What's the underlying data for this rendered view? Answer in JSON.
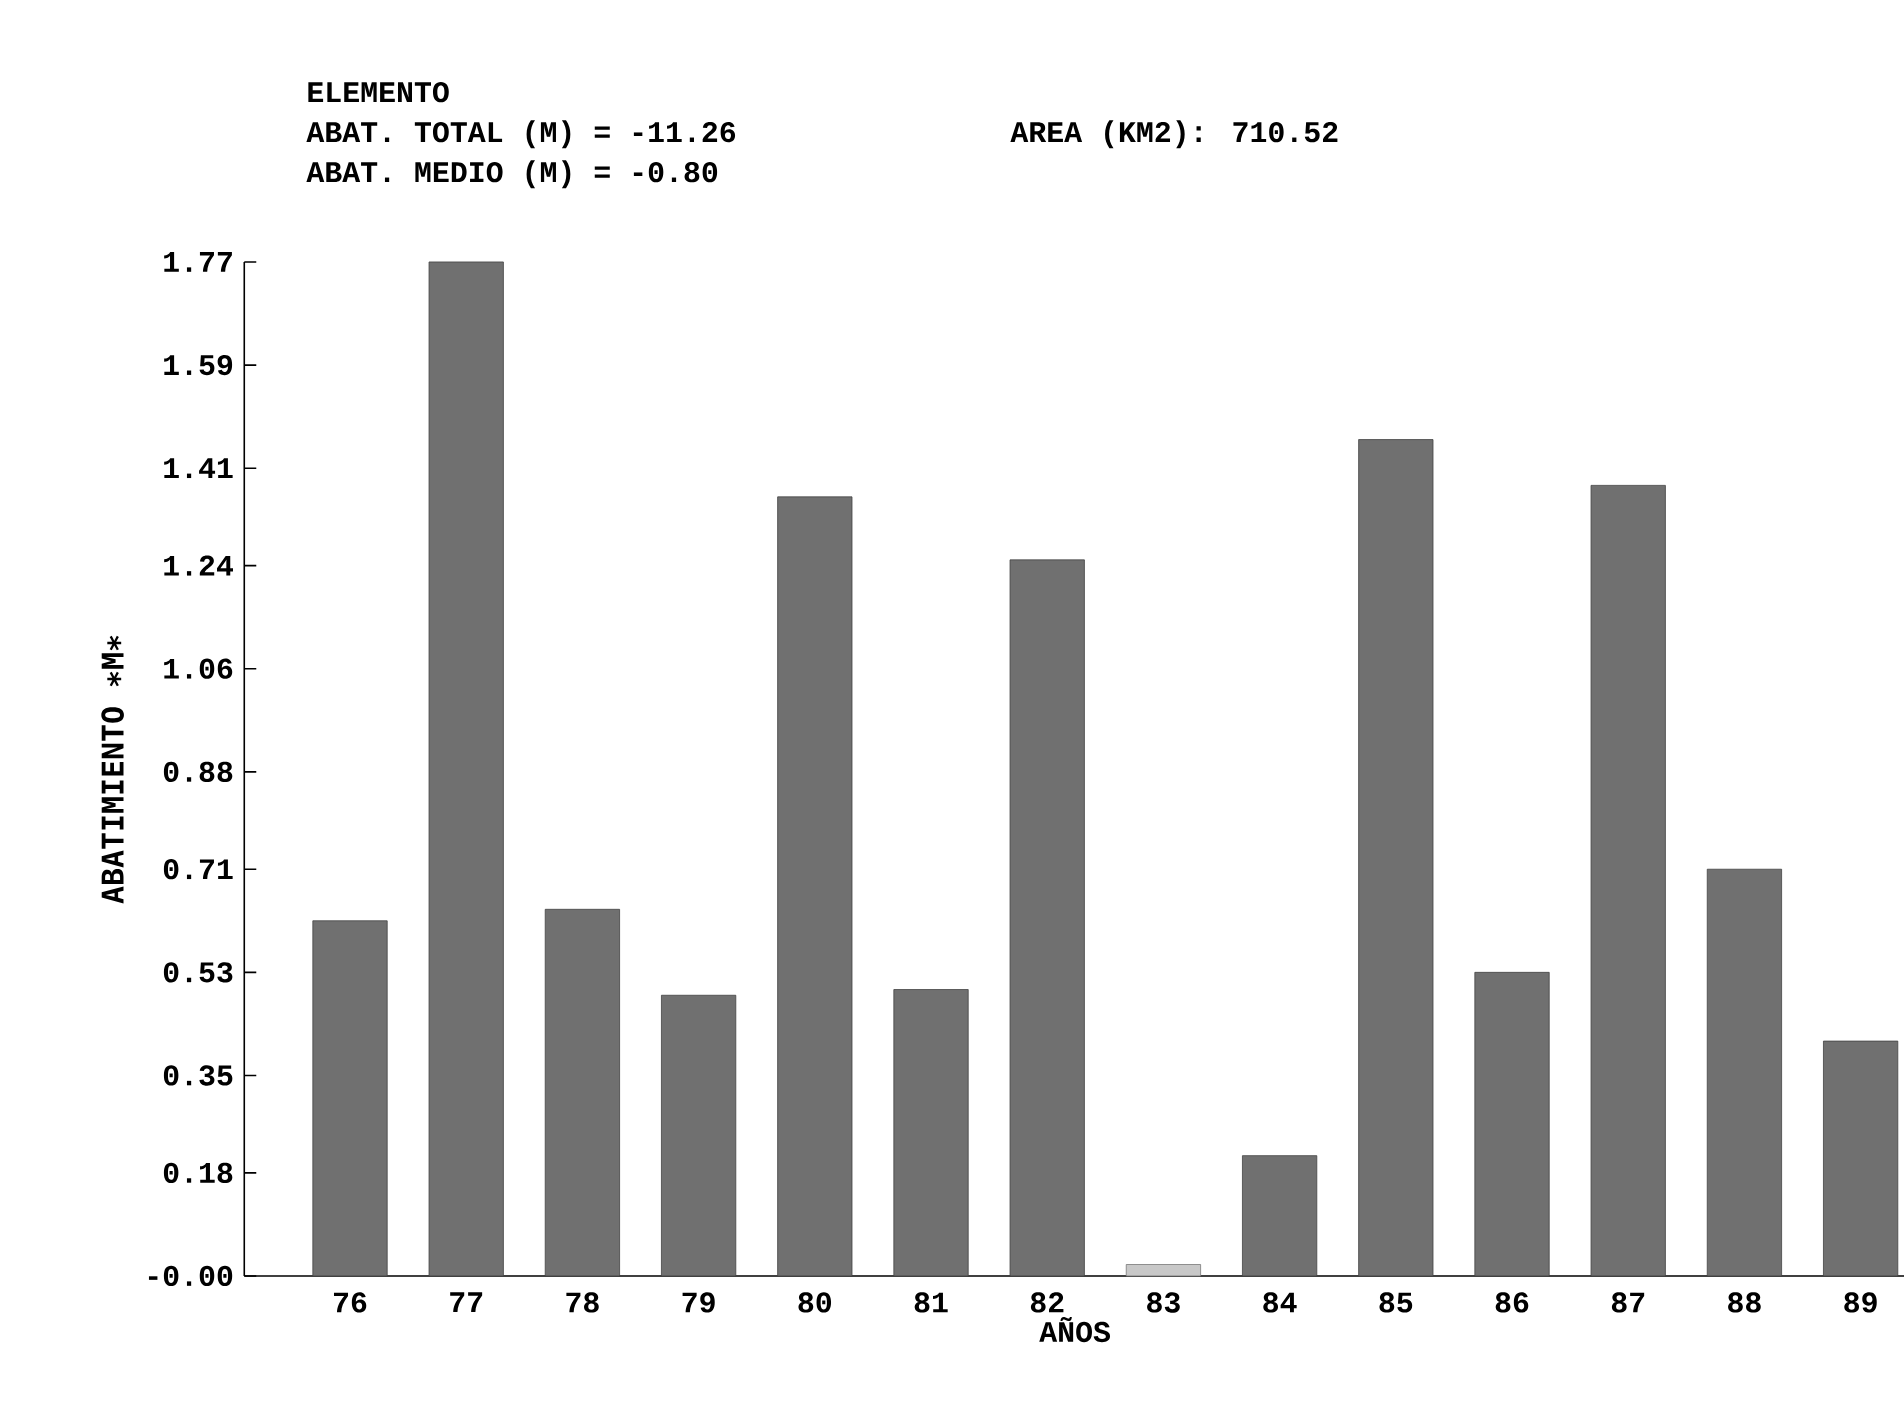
{
  "chart_data": {
    "type": "bar",
    "title": "ELEMENTO",
    "annotations": [
      "ABAT. TOTAL (M) = -11.26",
      "AREA (KM2):    710.52",
      "ABAT. MEDIO (M) =  -0.80"
    ],
    "xlabel": "AÑOS",
    "ylabel": "ABATIMIENTO ∗M∗",
    "categories": [
      "76",
      "77",
      "78",
      "79",
      "80",
      "81",
      "82",
      "83",
      "84",
      "85",
      "86",
      "87",
      "88",
      "89"
    ],
    "values": [
      0.62,
      1.77,
      0.64,
      0.49,
      1.36,
      0.5,
      1.25,
      0.02,
      0.21,
      1.46,
      0.53,
      1.38,
      0.71,
      0.41
    ],
    "colors": [
      "#707070",
      "#707070",
      "#707070",
      "#707070",
      "#707070",
      "#707070",
      "#707070",
      "#c8c8c8",
      "#707070",
      "#707070",
      "#707070",
      "#707070",
      "#707070",
      "#707070"
    ],
    "ylim": [
      0,
      1.77
    ],
    "yticks": [
      {
        "value": 0,
        "label": "-0.00"
      },
      0.18,
      0.35,
      0.53,
      0.71,
      0.88,
      1.06,
      1.24,
      1.41,
      1.59,
      1.77
    ]
  }
}
